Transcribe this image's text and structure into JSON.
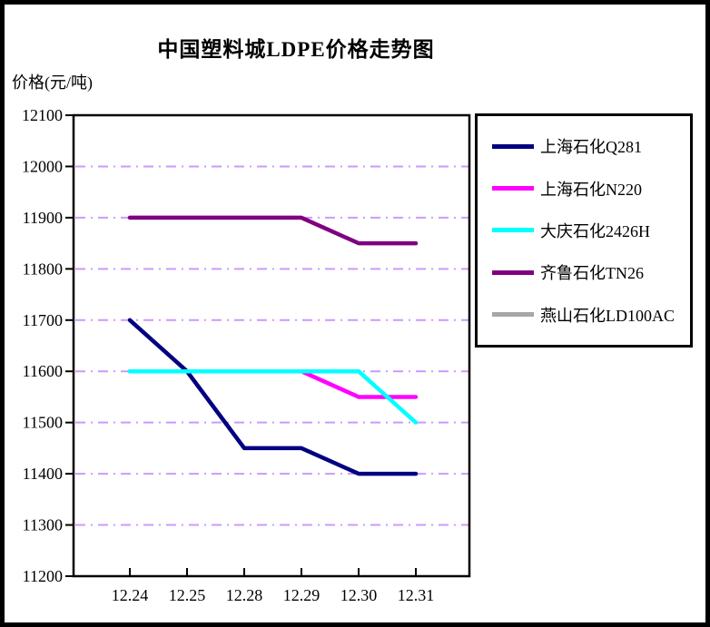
{
  "chart_data": {
    "type": "line",
    "title": "中国塑料城LDPE价格走势图",
    "ylabel": "价格(元/吨)",
    "xlabel": "",
    "categories": [
      "12.24",
      "12.25",
      "12.28",
      "12.29",
      "12.30",
      "12.31"
    ],
    "series": [
      {
        "name": "上海石化Q281",
        "color": "#000080",
        "values": [
          11700,
          11600,
          11450,
          11450,
          11400,
          11400
        ]
      },
      {
        "name": "上海石化N220",
        "color": "#FF00FF",
        "values": [
          11600,
          11600,
          11600,
          11600,
          11550,
          11550
        ]
      },
      {
        "name": "大庆石化2426H",
        "color": "#00FFFF",
        "values": [
          11600,
          11600,
          11600,
          11600,
          11600,
          11500
        ]
      },
      {
        "name": "齐鲁石化TN26",
        "color": "#800080",
        "values": [
          11900,
          11900,
          11900,
          11900,
          11850,
          11850
        ]
      },
      {
        "name": "燕山石化LD100AC",
        "color": "#A6A6A6",
        "values": []
      }
    ],
    "ylim": [
      11200,
      12100
    ],
    "ytick_step": 100,
    "yticks": [
      12100,
      12000,
      11900,
      11800,
      11700,
      11600,
      11500,
      11400,
      11300,
      11200
    ],
    "grid": {
      "horizontal": true,
      "vertical": false,
      "style": "dash-dot",
      "color": "#CC99FF"
    },
    "legend_position": "right",
    "axis_color": "#000000",
    "draw_order": [
      0,
      1,
      2,
      3,
      4
    ]
  }
}
